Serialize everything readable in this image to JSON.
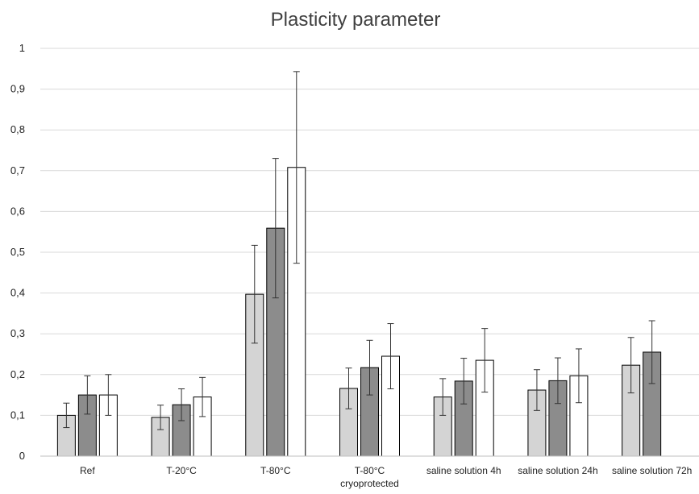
{
  "chart_data": {
    "type": "bar",
    "title": "Plasticity parameter",
    "xlabel": "",
    "ylabel": "",
    "ylim": [
      0,
      1
    ],
    "yticks": [
      "0",
      "0,1",
      "0,2",
      "0,3",
      "0,4",
      "0,5",
      "0,6",
      "0,7",
      "0,8",
      "0,9",
      "1"
    ],
    "grid": true,
    "legend": "none",
    "categories": [
      [
        "Ref"
      ],
      [
        "T-20°C"
      ],
      [
        "T-80°C"
      ],
      [
        "T-80°C",
        "cryoprotected"
      ],
      [
        "saline solution 4h"
      ],
      [
        "saline solution 24h"
      ],
      [
        "saline solution 72h"
      ]
    ],
    "series": [
      {
        "color": "#d4d4d4",
        "values": [
          0.1,
          0.095,
          0.397,
          0.166,
          0.145,
          0.162,
          0.223
        ],
        "errors": [
          0.03,
          0.03,
          0.12,
          0.05,
          0.045,
          0.05,
          0.068
        ]
      },
      {
        "color": "#8c8c8c",
        "values": [
          0.15,
          0.126,
          0.559,
          0.217,
          0.184,
          0.185,
          0.255
        ],
        "errors": [
          0.047,
          0.039,
          0.171,
          0.067,
          0.056,
          0.056,
          0.077
        ]
      },
      {
        "color": "#ffffff",
        "values": [
          0.15,
          0.145,
          0.708,
          0.245,
          0.235,
          0.197,
          null
        ],
        "errors": [
          0.05,
          0.048,
          0.235,
          0.08,
          0.078,
          0.066,
          null
        ]
      }
    ]
  }
}
